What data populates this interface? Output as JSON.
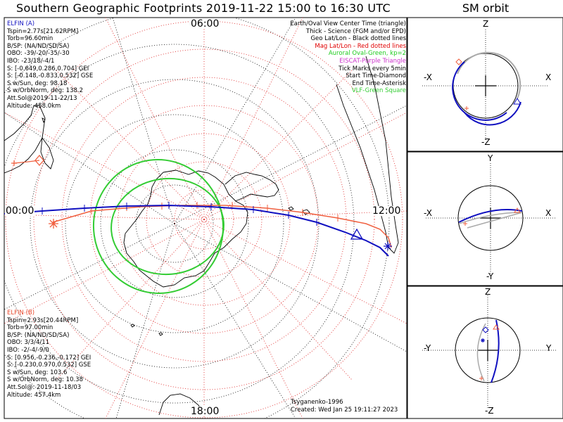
{
  "title": "Southern Geographic Footprints 2019-11-22 15:00 to 16:30 UTC",
  "sm_title": "SM orbit",
  "elfin_a": {
    "name": "ELFIN (A)",
    "lines": [
      "Tspin=2.77s[21.62RPM]",
      "Torb=96.60min",
      "B/SP: (NA/ND/SD/SA)",
      "OBO: -39/-20/-35/-30",
      "IBO: -23/18/-4/1",
      "S: [-0.649,0.286,0.704] GEI",
      "S: [-0.148,-0.833,0.532] GSE",
      "S w/Sun, deg: 98.18",
      "S w/OrbNorm, deg: 138.2",
      "Att.Sol@2019-11-22/13",
      "Altitude: 458.0km"
    ]
  },
  "elfin_b": {
    "name": "ELFIN (B)",
    "lines": [
      "Tspin=2.93s[20.44RPM]",
      "Torb=97.00min",
      "B/SP: (NA/ND/SD/SA)",
      "OBO: 3/3/4/11",
      "IBO: -2/-4/-9/0",
      "S: [0.956,-0.236,-0.172] GEI",
      "S: [-0.230,0.970,0.532] GSE",
      "S w/Sun, deg: 103.6",
      "S w/OrbNorm, deg: 10.38",
      "Att.Sol@: 2019-11-18/03",
      "Altitude: 457.4km"
    ]
  },
  "legend": {
    "line1": "Earth/Oval View Center Time (triangle)",
    "line2": "Thick - Science (FGM and/or EPD)",
    "line3": "Geo Lat/Lon - Black dotted lines",
    "line4": "Mag Lat/Lon - Red dotted lines",
    "line5": "Auroral Oval-Green, kp=2",
    "line6": "EISCAT-Purple Triangle",
    "line7": "Tick Marks every 5min",
    "line8": "Start Time-Diamond",
    "line9": "End Time-Asterisk",
    "line10": "VLF-Green Square"
  },
  "credits": {
    "model": "Tsyganenko-1996",
    "created": "Created: Wed Jan 25 19:11:27 2023"
  },
  "map_labels": {
    "top": "06:00",
    "left": "00:00",
    "right": "12:00",
    "bottom": "18:00"
  },
  "panels": {
    "xz": {
      "top": "Z",
      "bottom": "-Z",
      "left": "-X",
      "right": "X"
    },
    "xy": {
      "top": "Y",
      "bottom": "-Y",
      "left": "-X",
      "right": "X"
    },
    "yz": {
      "top": "Z",
      "bottom": "-Z",
      "left": "-Y",
      "right": "Y"
    }
  },
  "colors": {
    "elfin_a": "#1010c0",
    "elfin_b": "#f06040",
    "mag_grid": "#e03030",
    "geo_grid": "#000000",
    "oval": "#33cc33"
  }
}
